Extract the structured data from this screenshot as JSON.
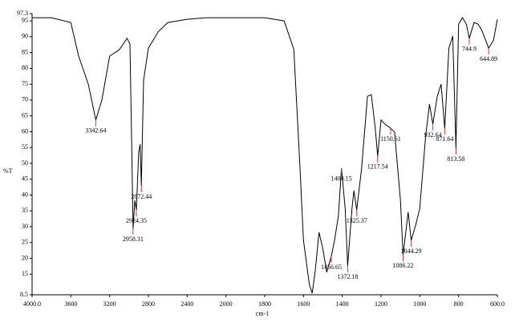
{
  "chart_data": {
    "type": "line",
    "xlabel": "cm-1",
    "ylabel": "%T",
    "xlim": [
      4000,
      600
    ],
    "ylim": [
      8.5,
      97.3
    ],
    "xticks": [
      {
        "value": 4000,
        "label": "4000.0"
      },
      3600,
      3200,
      2800,
      2400,
      2000,
      1800,
      1600,
      1400,
      1200,
      1000,
      800,
      {
        "value": 600,
        "label": "600.0"
      }
    ],
    "yticks": [
      97.3,
      95,
      90,
      85,
      80,
      75,
      70,
      65,
      60,
      55,
      50,
      45,
      40,
      35,
      30,
      25,
      20,
      15,
      8.5
    ],
    "color": "#000000",
    "peak_color": "#e03030",
    "x": [
      4000,
      3800,
      3600,
      3520,
      3420,
      3342.64,
      3280,
      3200,
      3100,
      3020,
      2990,
      2970,
      2958.31,
      2940,
      2924.35,
      2900,
      2885,
      2872.44,
      2850,
      2800,
      2700,
      2600,
      2400,
      2200,
      2000,
      1800,
      1700,
      1650,
      1620,
      1600,
      1570,
      1555,
      1540,
      1520,
      1500,
      1480,
      1456.65,
      1440,
      1420,
      1404.15,
      1385,
      1372.18,
      1350,
      1340,
      1325.37,
      1300,
      1270,
      1250,
      1230,
      1217.54,
      1200,
      1180,
      1150.61,
      1130,
      1100,
      1086.22,
      1060,
      1044.29,
      1020,
      1000,
      970,
      950,
      932.64,
      910,
      890,
      871.64,
      850,
      830,
      813.58,
      800,
      780,
      760,
      744.9,
      720,
      700,
      680,
      644.89,
      620,
      600
    ],
    "values": [
      96,
      96,
      94.5,
      83.9,
      75,
      63.7,
      70,
      83.9,
      85.9,
      89.5,
      87.7,
      51,
      29.5,
      38.3,
      35.3,
      53.5,
      56,
      42.9,
      76.3,
      86.4,
      91.5,
      94.5,
      95.5,
      96,
      96,
      96,
      95,
      86,
      51,
      25.7,
      11.8,
      9,
      15.6,
      28.2,
      23,
      15.6,
      20.6,
      25.7,
      33.3,
      48.5,
      35.8,
      17.6,
      35.8,
      41.4,
      35.3,
      48.5,
      71.2,
      71.7,
      61.1,
      52.3,
      63.7,
      62.4,
      61.1,
      59.9,
      38.3,
      21.1,
      34.6,
      25.7,
      30.8,
      35.8,
      58.6,
      68.7,
      62.4,
      71.2,
      75,
      61.1,
      86.4,
      90.2,
      54.8,
      94,
      96,
      94,
      89.5,
      94.5,
      94,
      92,
      86.4,
      88.9,
      95.5
    ],
    "peaks": [
      3342.64,
      2958.31,
      2924.35,
      2872.44,
      1456.65,
      1404.15,
      1372.18,
      1325.37,
      1217.54,
      1150.61,
      1086.22,
      1044.29,
      932.64,
      871.64,
      813.58,
      744.9,
      644.89
    ]
  }
}
